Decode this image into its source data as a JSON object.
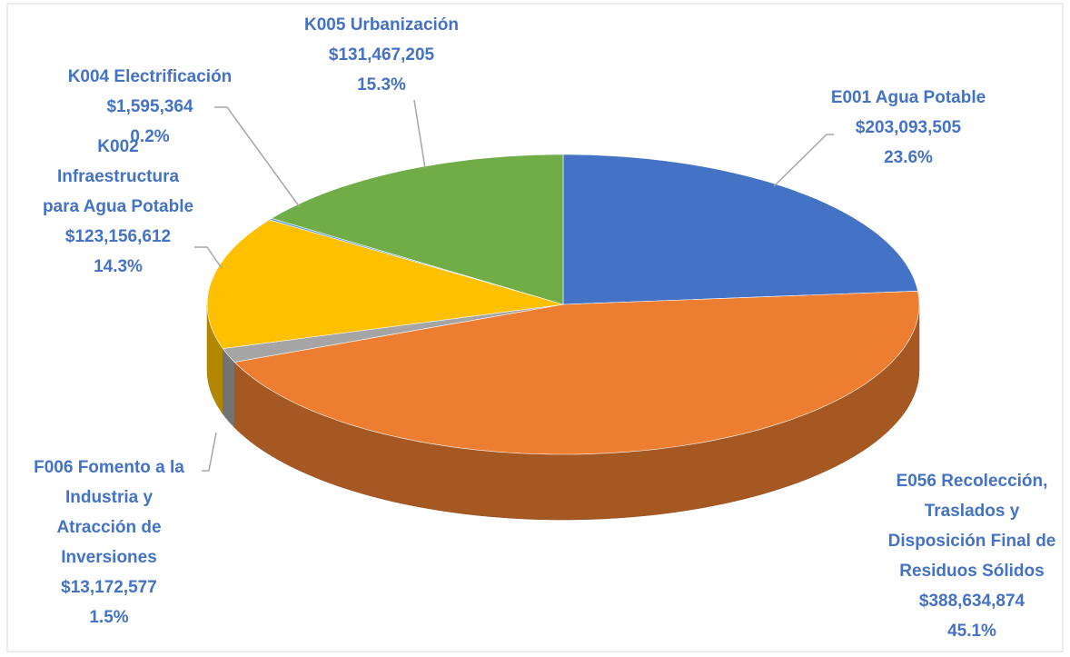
{
  "chart_data": {
    "type": "pie3d",
    "categories": [
      [
        "E001 Agua Potable"
      ],
      [
        "E056 Recolección,",
        "Traslados y",
        "Disposición Final de",
        "Residuos Sólidos"
      ],
      [
        "F006 Fomento a la",
        "Industria y",
        "Atracción de",
        "Inversiones"
      ],
      [
        "K002",
        "Infraestructura",
        "para Agua Potable"
      ],
      [
        "K004 Electrificación"
      ],
      [
        "K005 Urbanización"
      ]
    ],
    "values": [
      203093505,
      388634874,
      13172577,
      123156612,
      1595364,
      131467205
    ],
    "value_labels": [
      "$203,093,505",
      "$388,634,874",
      "$13,172,577",
      "$123,156,612",
      "$1,595,364",
      "$131,467,205"
    ],
    "percent_labels": [
      "23.6%",
      "45.1%",
      "1.5%",
      "14.3%",
      "0.2%",
      "15.3%"
    ],
    "colors": [
      "#4472c4",
      "#ed7d31",
      "#a5a5a5",
      "#ffc000",
      "#5b9bd5",
      "#70ad47"
    ],
    "label_color": "#4472c4"
  }
}
